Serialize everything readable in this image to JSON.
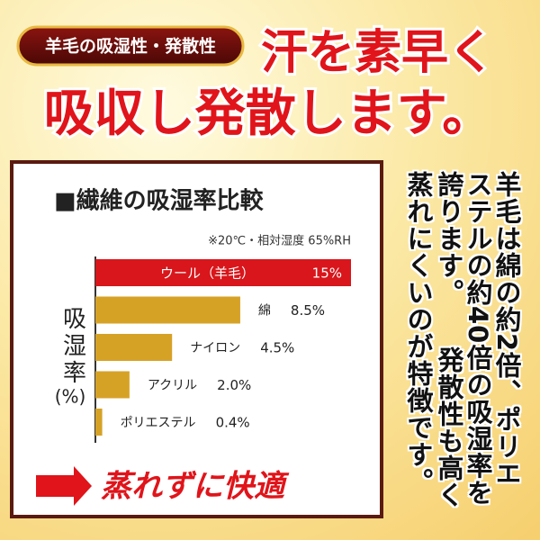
{
  "badge": "羊毛の吸湿性・発散性",
  "headline": [
    "汗を素早く",
    "吸収し発散します。"
  ],
  "description": [
    "羊毛は綿の約2倍、ポリエ",
    "ステルの約40倍の吸湿率を",
    "誇ります。",
    "発散性も高く",
    "蒸れにくいのが特徴です。"
  ],
  "chart_data": {
    "type": "bar",
    "orientation": "horizontal",
    "title": "■繊維の吸湿率比較",
    "subtitle": "※20℃・相対湿度 65%RH",
    "y_label": "吸湿率",
    "y_unit": "(%)",
    "categories": [
      "ウール（羊毛）",
      "綿",
      "ナイロン",
      "アクリル",
      "ポリエステル"
    ],
    "values": [
      15,
      8.5,
      4.5,
      2.0,
      0.4
    ],
    "value_labels": [
      "15%",
      "8.5%",
      "4.5%",
      "2.0%",
      "0.4%"
    ],
    "colors": [
      "#d8161b",
      "#d6a226",
      "#d6a226",
      "#d6a226",
      "#d6a226"
    ]
  },
  "footer": "蒸れずに快適"
}
